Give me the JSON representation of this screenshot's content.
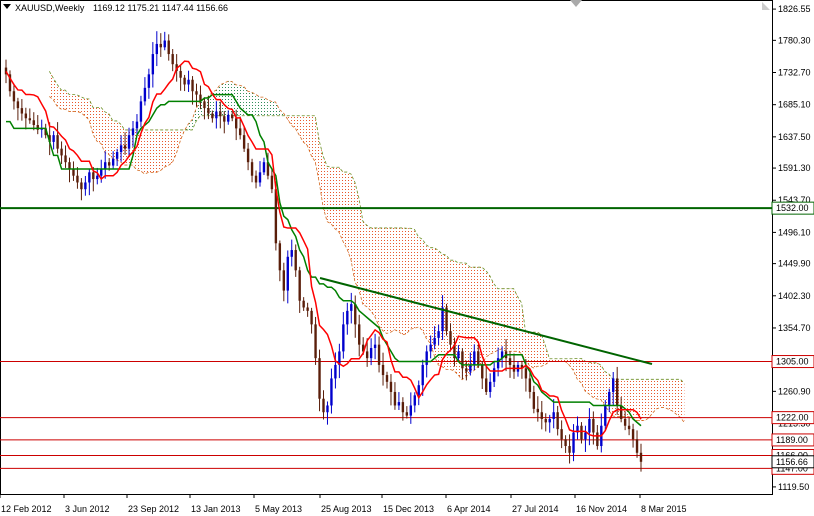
{
  "header": {
    "symbol": "XAUUSD,Weekly",
    "ohlc": "1169.12 1175.21 1147.44 1156.66"
  },
  "chart_data": {
    "type": "candlestick",
    "symbol": "XAUUSD",
    "timeframe": "Weekly",
    "ylim": [
      1109,
      1840
    ],
    "y_ticks": [
      1826.55,
      1780.3,
      1732.7,
      1685.1,
      1637.5,
      1591.3,
      1543.7,
      1496.1,
      1449.9,
      1402.3,
      1354.7,
      1307.1,
      1260.9,
      1213.3,
      1165.7,
      1119.5
    ],
    "x_ticks": [
      "12 Feb 2012",
      "3 Jun 2012",
      "23 Sep 2012",
      "13 Jan 2013",
      "5 May 2013",
      "25 Aug 2013",
      "15 Dec 2013",
      "6 Apr 2014",
      "27 Jul 2014",
      "16 Nov 2014",
      "8 Mar 2015"
    ],
    "horizontal_levels": [
      {
        "label": "1532.00",
        "value": 1532.0,
        "color": "#006400"
      },
      {
        "label": "1305.00",
        "value": 1305.0,
        "color": "#cc0000"
      },
      {
        "label": "1222.00",
        "value": 1222.0,
        "color": "#cc0000"
      },
      {
        "label": "1189.00",
        "value": 1189.0,
        "color": "#cc0000"
      },
      {
        "label": "1166.00",
        "value": 1166.0,
        "color": "#cc0000"
      },
      {
        "label": "1147.00",
        "value": 1147.0,
        "color": "#cc0000"
      }
    ],
    "current_price": 1156.66,
    "close": [
      1730,
      1705,
      1690,
      1680,
      1672,
      1665,
      1662,
      1655,
      1648,
      1650,
      1640,
      1630,
      1640,
      1620,
      1610,
      1600,
      1590,
      1580,
      1570,
      1560,
      1570,
      1585,
      1575,
      1580,
      1590,
      1600,
      1595,
      1605,
      1615,
      1625,
      1620,
      1640,
      1650,
      1660,
      1690,
      1710,
      1730,
      1760,
      1775,
      1770,
      1780,
      1760,
      1745,
      1735,
      1725,
      1715,
      1722,
      1705,
      1700,
      1690,
      1680,
      1672,
      1665,
      1675,
      1668,
      1660,
      1670,
      1665,
      1650,
      1640,
      1620,
      1600,
      1580,
      1570,
      1585,
      1600,
      1580,
      1560,
      1480,
      1440,
      1410,
      1460,
      1470,
      1440,
      1395,
      1385,
      1380,
      1360,
      1310,
      1250,
      1230,
      1240,
      1280,
      1300,
      1320,
      1360,
      1380,
      1390,
      1360,
      1330,
      1320,
      1310,
      1325,
      1330,
      1300,
      1285,
      1275,
      1260,
      1240,
      1245,
      1230,
      1225,
      1240,
      1255,
      1270,
      1300,
      1320,
      1330,
      1340,
      1350,
      1385,
      1350,
      1330,
      1310,
      1320,
      1295,
      1290,
      1300,
      1320,
      1300,
      1280,
      1260,
      1275,
      1295,
      1310,
      1320,
      1310,
      1300,
      1290,
      1300,
      1295,
      1280,
      1260,
      1235,
      1230,
      1220,
      1215,
      1220,
      1230,
      1205,
      1190,
      1180,
      1170,
      1200,
      1210,
      1190,
      1200,
      1220,
      1200,
      1180,
      1210,
      1240,
      1260,
      1280,
      1240,
      1220,
      1210,
      1205,
      1190,
      1170,
      1156.66
    ],
    "kijun": [
      1660,
      1660,
      1650,
      1650,
      1650,
      1650,
      1650,
      1650,
      1650,
      1650,
      1650,
      1630,
      1610,
      1610,
      1590,
      1590,
      1590,
      1590,
      1590,
      1590,
      1590,
      1590,
      1590,
      1590,
      1590,
      1590,
      1590,
      1590,
      1590,
      1590,
      1590,
      1590,
      1610,
      1640,
      1650,
      1655,
      1660,
      1670,
      1680,
      1685,
      1685,
      1690,
      1690,
      1690,
      1690,
      1690,
      1690,
      1690,
      1690,
      1690,
      1695,
      1695,
      1700,
      1700,
      1700,
      1700,
      1700,
      1700,
      1690,
      1680,
      1675,
      1670,
      1670,
      1660,
      1640,
      1630,
      1600,
      1590,
      1580,
      1540,
      1520,
      1515,
      1500,
      1490,
      1470,
      1460,
      1440,
      1430,
      1430,
      1420,
      1420,
      1415,
      1415,
      1410,
      1400,
      1395,
      1395,
      1395,
      1390,
      1380,
      1375,
      1370,
      1365,
      1360,
      1355,
      1340,
      1330,
      1320,
      1310,
      1305,
      1305,
      1305,
      1305,
      1305,
      1305,
      1305,
      1305,
      1305,
      1310,
      1315,
      1315,
      1315,
      1315,
      1315,
      1305,
      1300,
      1300,
      1300,
      1300,
      1300,
      1300,
      1300,
      1300,
      1305,
      1305,
      1310,
      1315,
      1315,
      1315,
      1315,
      1315,
      1300,
      1290,
      1275,
      1270,
      1260,
      1255,
      1250,
      1245,
      1245,
      1245,
      1245,
      1245,
      1245,
      1245,
      1245,
      1245,
      1245,
      1240,
      1240,
      1240,
      1240,
      1240,
      1240,
      1240,
      1240,
      1235,
      1230,
      1220,
      1215,
      1210
    ]
  }
}
